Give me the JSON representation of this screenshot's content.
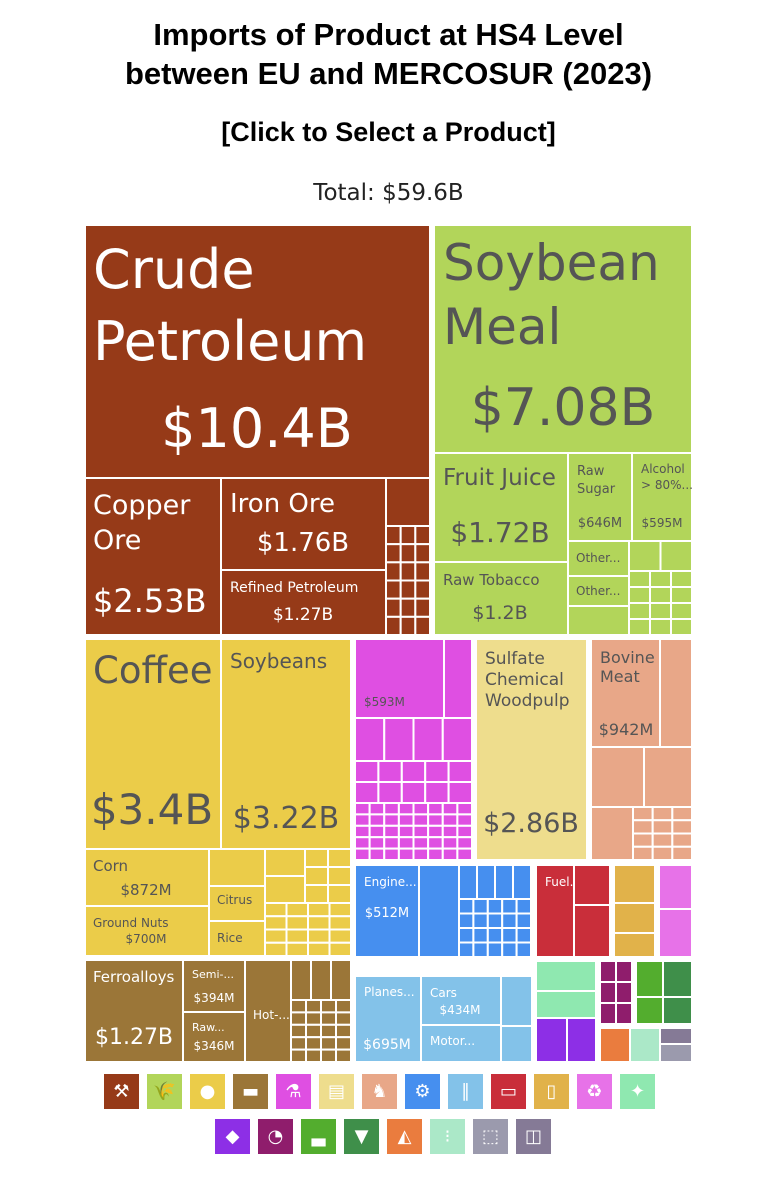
{
  "title_line1": "Imports of Product at HS4 Level",
  "title_line2": "between EU and MERCOSUR (2023)",
  "selector_label": "[Click to Select a Product]",
  "total_label": "Total: $59.6B",
  "colors": {
    "mineral": "#963a18",
    "vegetable": "#b2d55a",
    "vegetable_dark": "#a8ce55",
    "foodstuffs": "#ebcc49",
    "metals": "#9b7638",
    "chemicals": "#df4fe2",
    "paper": "#eedd8d",
    "animal": "#e8a788",
    "machines": "#468fef",
    "transportation": "#83c2e9",
    "plastics": "#c92e3a",
    "instruments": "#e1b24a",
    "misc": "#e772e8",
    "hides": "#8fe8b0",
    "precious": "#8d2fe6",
    "textiles": "#8f1d6c",
    "footwear": "#53ad2e",
    "stone": "#ea7c3e",
    "weapons": "#abe8c8",
    "arts": "#857a96"
  },
  "chart_data": {
    "type": "treemap",
    "title": "Imports of Product at HS4 Level between EU and MERCOSUR (2023)",
    "total": "$59.6B",
    "items": [
      {
        "name": "Crude Petroleum",
        "value": "$10.4B",
        "value_num": 10.4,
        "sector": "mineral"
      },
      {
        "name": "Copper Ore",
        "value": "$2.53B",
        "value_num": 2.53,
        "sector": "mineral"
      },
      {
        "name": "Iron Ore",
        "value": "$1.76B",
        "value_num": 1.76,
        "sector": "mineral"
      },
      {
        "name": "Refined Petroleum",
        "value": "$1.27B",
        "value_num": 1.27,
        "sector": "mineral"
      },
      {
        "name": "Soybean Meal",
        "value": "$7.08B",
        "value_num": 7.08,
        "sector": "vegetable"
      },
      {
        "name": "Fruit Juice",
        "value": "$1.72B",
        "value_num": 1.72,
        "sector": "vegetable"
      },
      {
        "name": "Raw Tobacco",
        "value": "$1.2B",
        "value_num": 1.2,
        "sector": "vegetable"
      },
      {
        "name": "Raw Sugar",
        "value": "$646M",
        "value_num": 0.646,
        "sector": "vegetable"
      },
      {
        "name": "Alcohol > 80%...",
        "value": "$595M",
        "value_num": 0.595,
        "sector": "vegetable"
      },
      {
        "name": "Other...",
        "value": "",
        "sector": "vegetable"
      },
      {
        "name": "Other...",
        "value": "",
        "sector": "vegetable"
      },
      {
        "name": "Coffee",
        "value": "$3.4B",
        "value_num": 3.4,
        "sector": "vegetable"
      },
      {
        "name": "Soybeans",
        "value": "$3.22B",
        "value_num": 3.22,
        "sector": "vegetable"
      },
      {
        "name": "Corn",
        "value": "$872M",
        "value_num": 0.872,
        "sector": "vegetable"
      },
      {
        "name": "Ground Nuts",
        "value": "$700M",
        "value_num": 0.7,
        "sector": "vegetable"
      },
      {
        "name": "Citrus",
        "value": "",
        "sector": "vegetable"
      },
      {
        "name": "Rice",
        "value": "",
        "sector": "vegetable"
      },
      {
        "name": "Ferroalloys",
        "value": "$1.27B",
        "value_num": 1.27,
        "sector": "metals"
      },
      {
        "name": "Semi-...",
        "value": "$394M",
        "value_num": 0.394,
        "sector": "metals"
      },
      {
        "name": "Raw...",
        "value": "$346M",
        "value_num": 0.346,
        "sector": "metals"
      },
      {
        "name": "Hot-...",
        "value": "",
        "sector": "metals"
      },
      {
        "name": "",
        "value": "$593M",
        "value_num": 0.593,
        "sector": "chemicals"
      },
      {
        "name": "Sulfate Chemical Woodpulp",
        "value": "$2.86B",
        "value_num": 2.86,
        "sector": "paper"
      },
      {
        "name": "Bovine Meat",
        "value": "$942M",
        "value_num": 0.942,
        "sector": "animal"
      },
      {
        "name": "Engine...",
        "value": "$512M",
        "value_num": 0.512,
        "sector": "machines"
      },
      {
        "name": "Planes...",
        "value": "$695M",
        "value_num": 0.695,
        "sector": "transportation"
      },
      {
        "name": "Cars",
        "value": "$434M",
        "value_num": 0.434,
        "sector": "transportation"
      },
      {
        "name": "Motor...",
        "value": "",
        "sector": "transportation"
      },
      {
        "name": "Fuel...",
        "value": "",
        "sector": "plastics"
      }
    ]
  },
  "legend": {
    "row1": [
      {
        "icon": "pickaxe-icon",
        "glyph": "⚒",
        "color": "#963a18"
      },
      {
        "icon": "wheat-icon",
        "glyph": "🌾",
        "color": "#b2d55a"
      },
      {
        "icon": "tomato-icon",
        "glyph": "●",
        "color": "#ebcc49"
      },
      {
        "icon": "anvil-icon",
        "glyph": "▬",
        "color": "#9b7638"
      },
      {
        "icon": "flask-icon",
        "glyph": "⚗",
        "color": "#df4fe2"
      },
      {
        "icon": "scroll-icon",
        "glyph": "▤",
        "color": "#eedd8d"
      },
      {
        "icon": "pig-icon",
        "glyph": "♞",
        "color": "#e8a788"
      },
      {
        "icon": "gear-icon",
        "glyph": "⚙",
        "color": "#468fef"
      },
      {
        "icon": "road-icon",
        "glyph": "∥",
        "color": "#83c2e9"
      },
      {
        "icon": "pipe-icon",
        "glyph": "▭",
        "color": "#c92e3a"
      },
      {
        "icon": "jar-icon",
        "glyph": "▯",
        "color": "#e1b24a"
      },
      {
        "icon": "recycle-icon",
        "glyph": "♻",
        "color": "#e772e8"
      },
      {
        "icon": "hide-icon",
        "glyph": "✦",
        "color": "#8fe8b0"
      }
    ],
    "row2": [
      {
        "icon": "diamond-icon",
        "glyph": "◆",
        "color": "#8d2fe6"
      },
      {
        "icon": "gauge-icon",
        "glyph": "◔",
        "color": "#8f1d6c"
      },
      {
        "icon": "shoe-icon",
        "glyph": "▃",
        "color": "#53ad2e"
      },
      {
        "icon": "shirt-icon",
        "glyph": "▼",
        "color": "#3f8f4a"
      },
      {
        "icon": "stone-icon",
        "glyph": "◭",
        "color": "#ea7c3e"
      },
      {
        "icon": "bullets-icon",
        "glyph": "⁝",
        "color": "#abe8c8"
      },
      {
        "icon": "box-icon",
        "glyph": "⬚",
        "color": "#9b9aad"
      },
      {
        "icon": "easel-icon",
        "glyph": "◫",
        "color": "#857a96"
      }
    ]
  }
}
